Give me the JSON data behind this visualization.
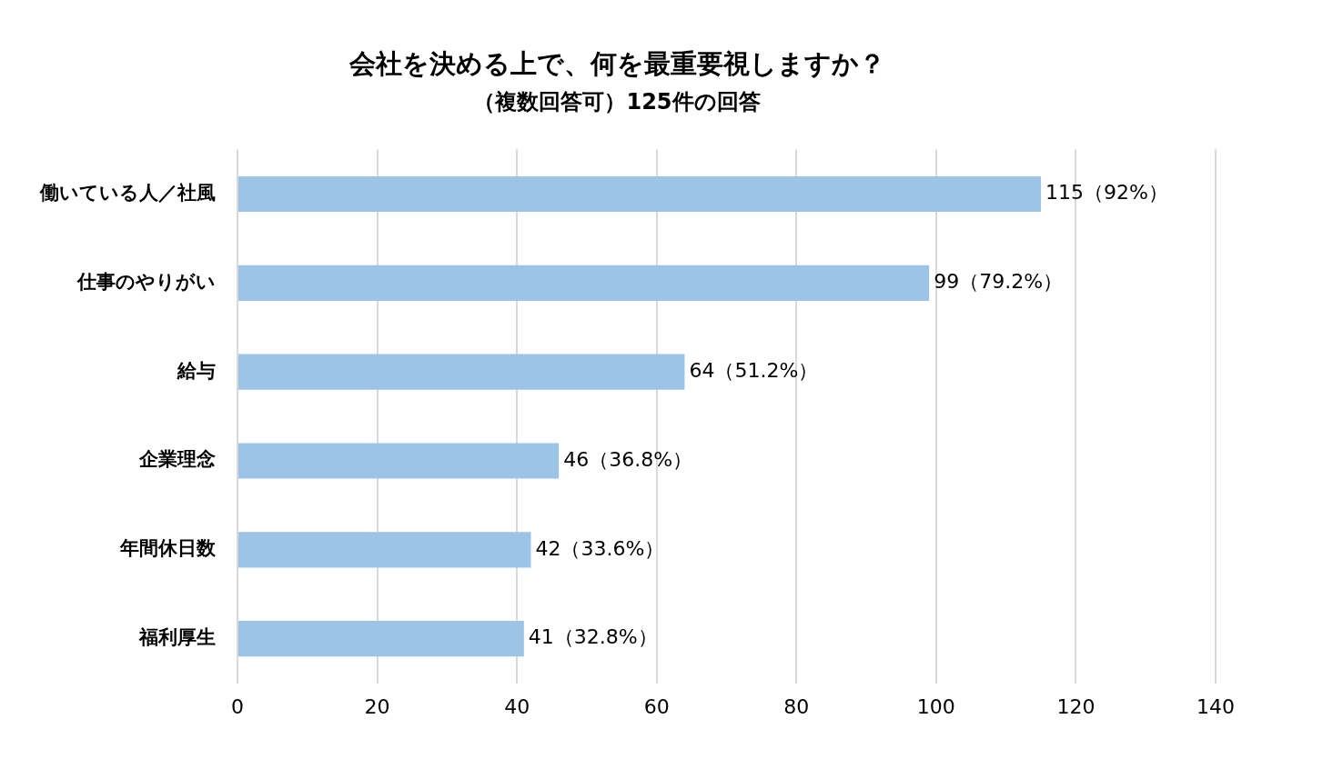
{
  "chart_data": {
    "type": "bar",
    "orientation": "horizontal",
    "title": "会社を決める上で、何を最重要視しますか？",
    "subtitle": "（複数回答可）125件の回答",
    "categories": [
      "働いている人／社風",
      "仕事のやりがい",
      "給与",
      "企業理念",
      "年間休日数",
      "福利厚生"
    ],
    "values": [
      115,
      99,
      64,
      46,
      42,
      41
    ],
    "value_labels": [
      "115（92%）",
      "99（79.2%）",
      "64（51.2%）",
      "46（36.8%）",
      "42（33.6%）",
      "41（32.8%）"
    ],
    "color": "#9dc3e6",
    "xlim": [
      0,
      140
    ],
    "xticks": [
      0,
      20,
      40,
      60,
      80,
      100,
      120,
      140
    ],
    "grid": "x",
    "legend": false
  }
}
